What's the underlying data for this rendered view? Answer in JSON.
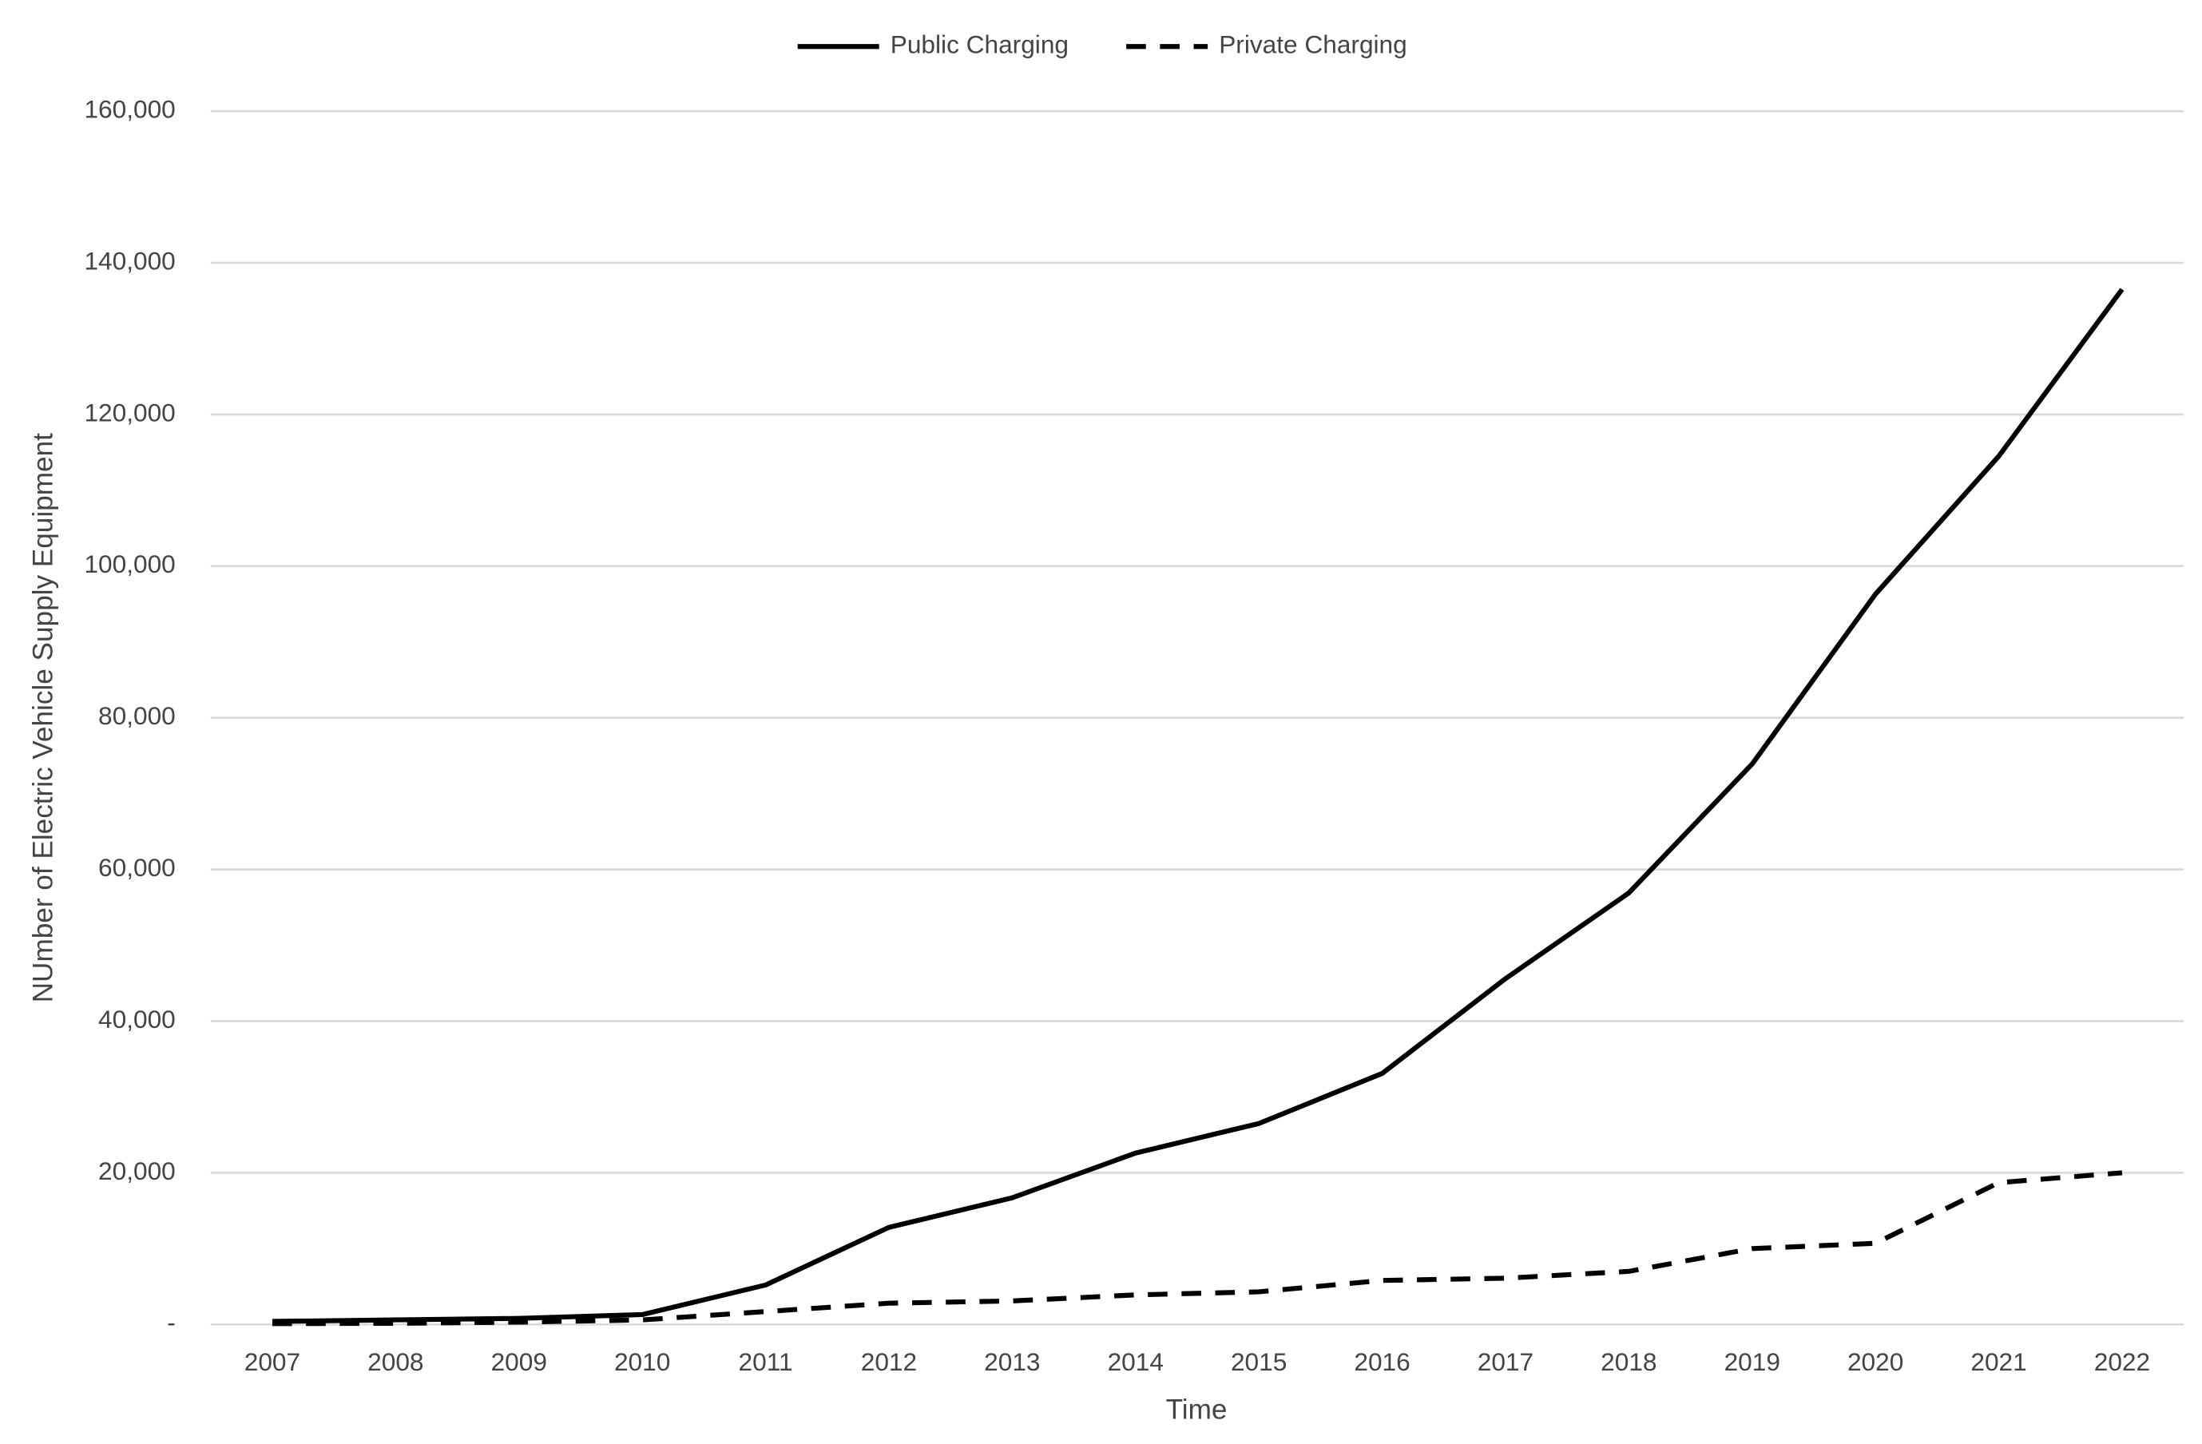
{
  "chart_data": {
    "type": "line",
    "x_label": "Time",
    "y_label": "NUmber of Electric Vehicle Supply Equipment",
    "categories": [
      "2007",
      "2008",
      "2009",
      "2010",
      "2011",
      "2012",
      "2013",
      "2014",
      "2015",
      "2016",
      "2017",
      "2018",
      "2019",
      "2020",
      "2021",
      "2022"
    ],
    "series": [
      {
        "name": "Public Charging",
        "color": "#000000",
        "line_style": "solid",
        "values": [
          400,
          600,
          800,
          1300,
          5200,
          12800,
          16700,
          22600,
          26500,
          33100,
          45600,
          56900,
          73900,
          96300,
          114500,
          136500
        ]
      },
      {
        "name": "Private Charging",
        "color": "#000000",
        "line_style": "dashed",
        "values": [
          100,
          150,
          300,
          600,
          1700,
          2800,
          3100,
          3900,
          4300,
          5800,
          6100,
          7000,
          10000,
          10700,
          18700,
          20000
        ]
      }
    ],
    "ylim": [
      0,
      160000
    ],
    "yticks": [
      {
        "value": 0,
        "label": "-"
      },
      {
        "value": 20000,
        "label": "20,000"
      },
      {
        "value": 40000,
        "label": "40,000"
      },
      {
        "value": 60000,
        "label": "60,000"
      },
      {
        "value": 80000,
        "label": "80,000"
      },
      {
        "value": 100000,
        "label": "100,000"
      },
      {
        "value": 120000,
        "label": "120,000"
      },
      {
        "value": 140000,
        "label": "140,000"
      },
      {
        "value": 160000,
        "label": "160,000"
      }
    ],
    "grid": true,
    "legend": "top"
  }
}
